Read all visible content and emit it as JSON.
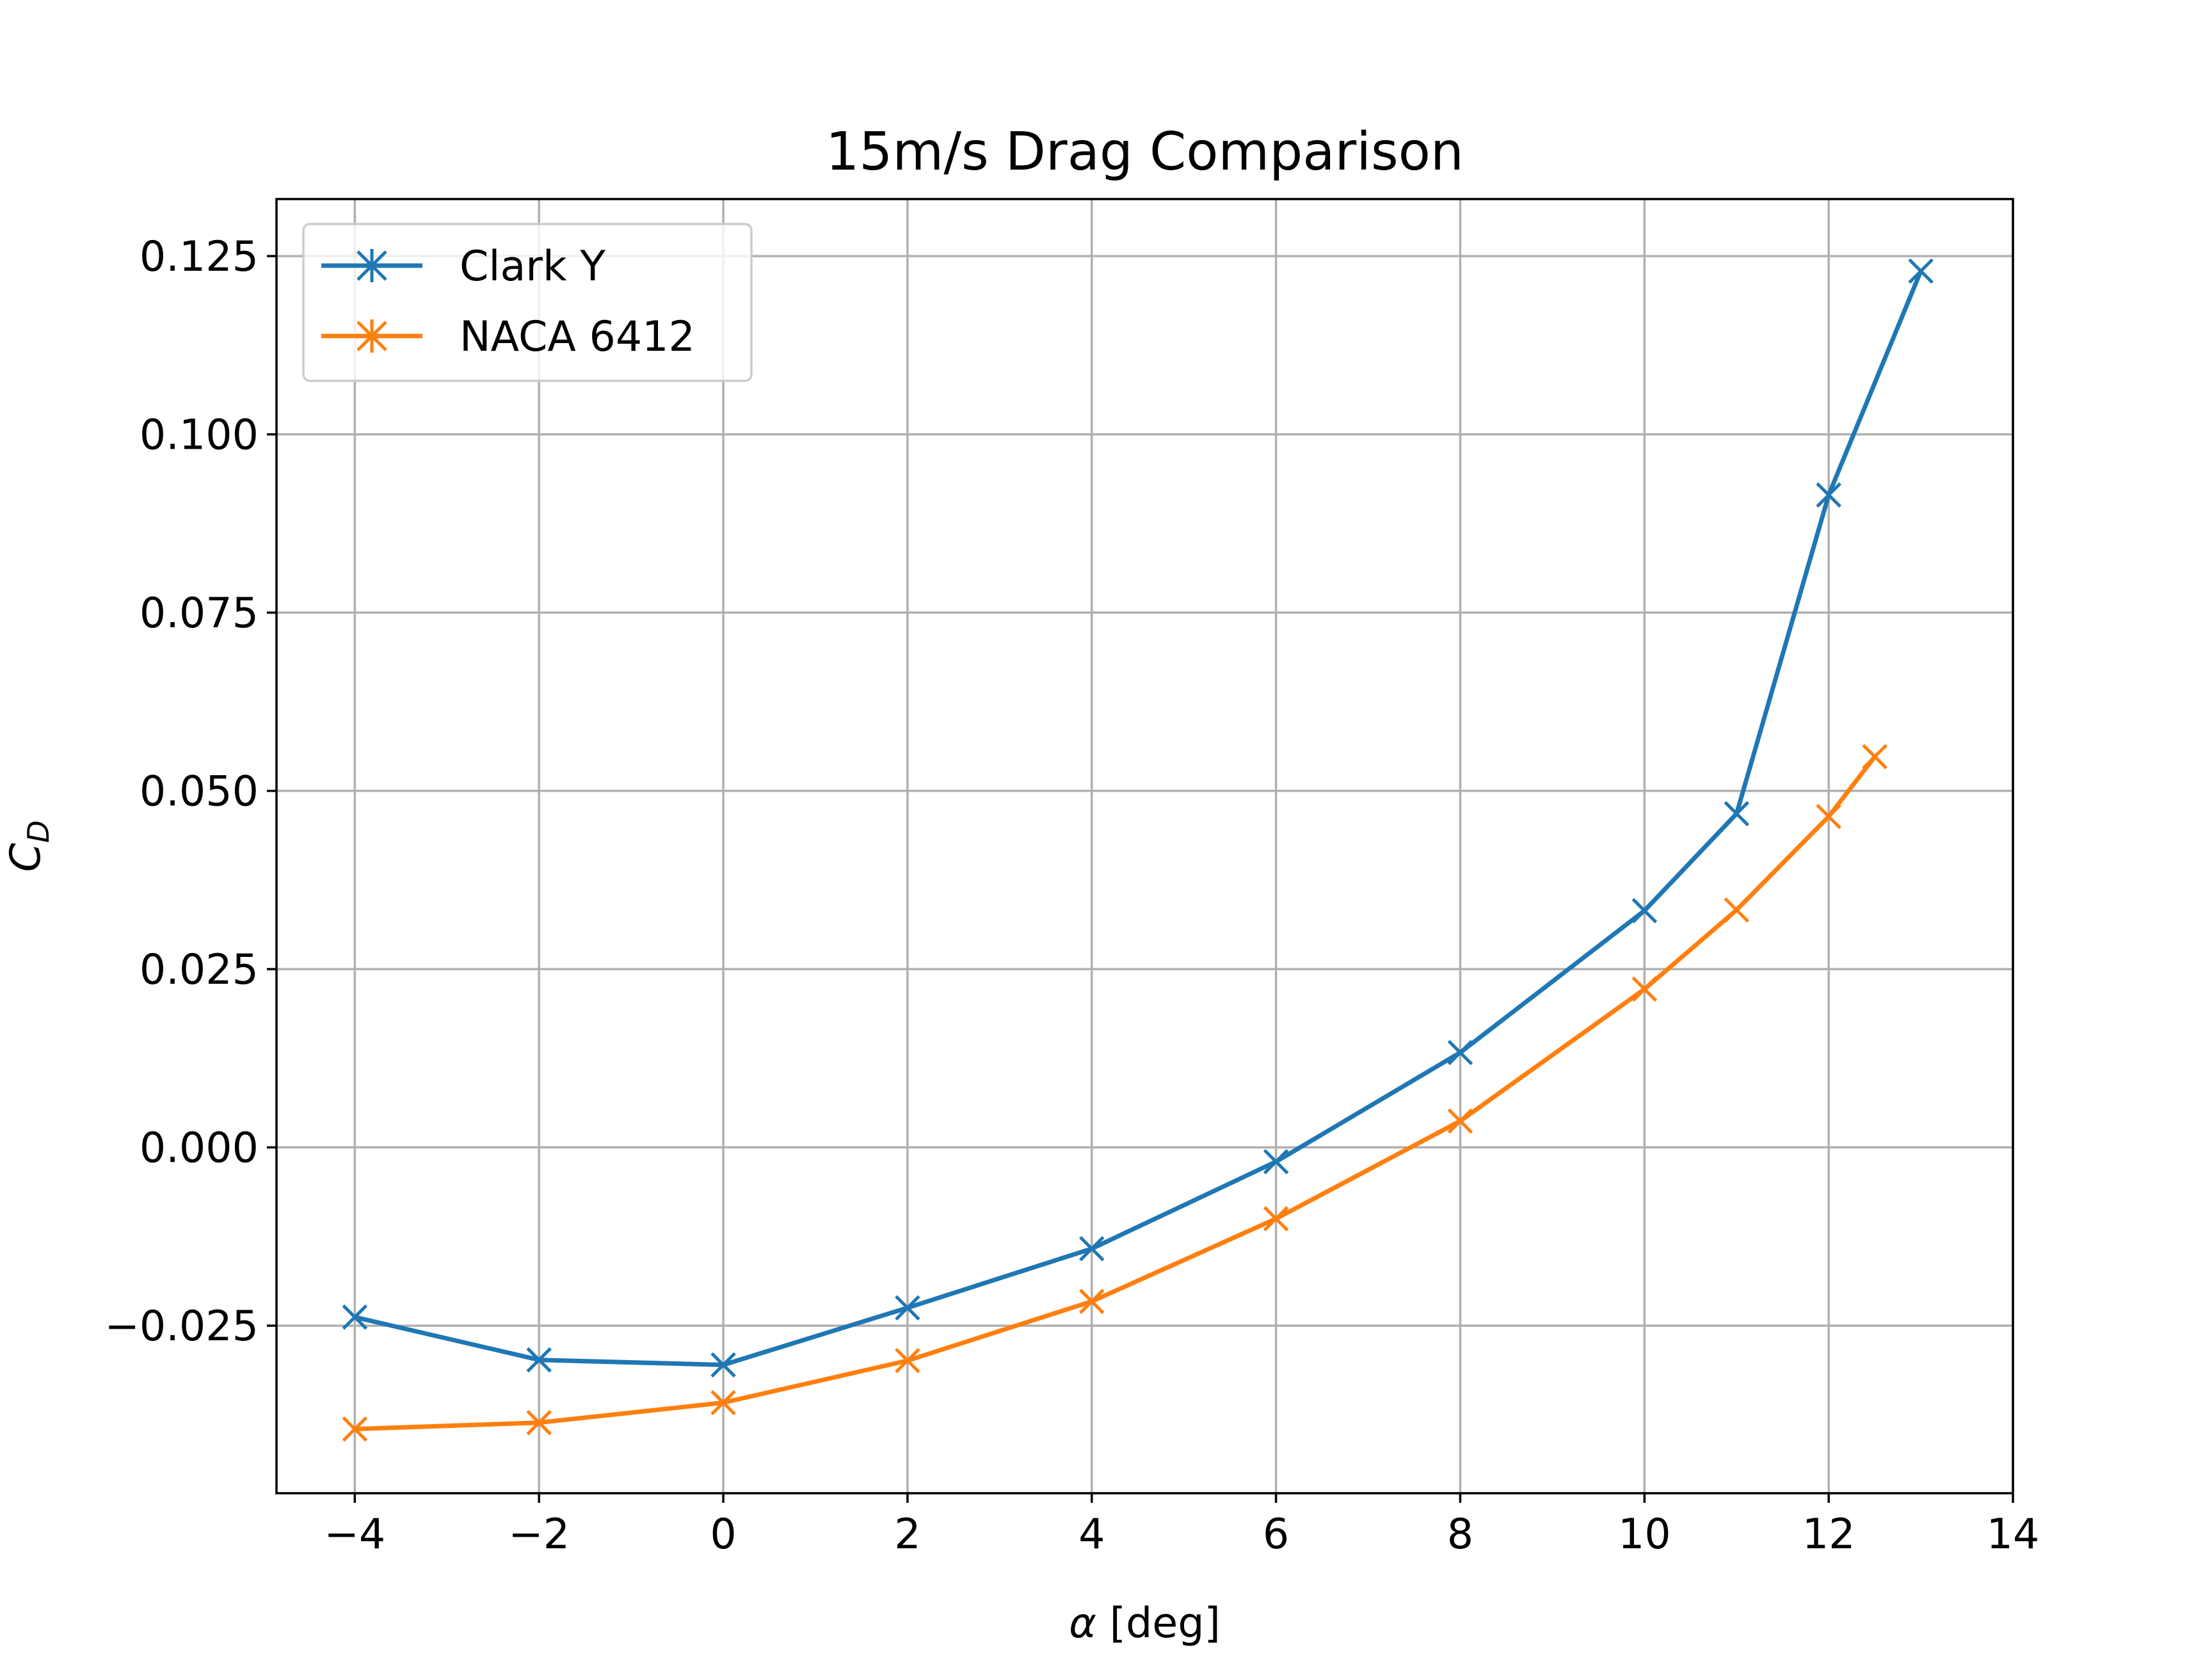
{
  "chart_data": {
    "type": "line",
    "title": "15m/s Drag Comparison",
    "xlabel_symbol": "α",
    "xlabel_unit": " [deg]",
    "ylabel_main": "C",
    "ylabel_sub": "D",
    "xlim": [
      -4.85,
      14
    ],
    "ylim": [
      -0.0485,
      0.133
    ],
    "xticks": [
      -4,
      -2,
      0,
      2,
      4,
      6,
      8,
      10,
      12,
      14
    ],
    "xtick_labels": [
      "−4",
      "−2",
      "0",
      "2",
      "4",
      "6",
      "8",
      "10",
      "12",
      "14"
    ],
    "yticks": [
      -0.025,
      0.0,
      0.025,
      0.05,
      0.075,
      0.1,
      0.125
    ],
    "ytick_labels": [
      "−0.025",
      "0.000",
      "0.025",
      "0.050",
      "0.075",
      "0.100",
      "0.125"
    ],
    "grid": true,
    "legend_position": "top-left",
    "marker": "x",
    "series": [
      {
        "name": "Clark Y",
        "color": "#1f77b4",
        "x": [
          -4,
          -2,
          0,
          2,
          4,
          6,
          8,
          10,
          11,
          12,
          13
        ],
        "y": [
          -0.0238,
          -0.0298,
          -0.0305,
          -0.0225,
          -0.0142,
          -0.002,
          0.0133,
          0.0332,
          0.0468,
          0.0915,
          0.1229
        ]
      },
      {
        "name": "NACA 6412",
        "color": "#ff7f0e",
        "x": [
          -4,
          -2,
          0,
          2,
          4,
          6,
          8,
          10,
          11,
          12,
          12.5
        ],
        "y": [
          -0.0395,
          -0.0386,
          -0.0358,
          -0.0299,
          -0.0216,
          -0.01,
          0.0037,
          0.0222,
          0.0333,
          0.0464,
          0.0548
        ]
      }
    ]
  }
}
